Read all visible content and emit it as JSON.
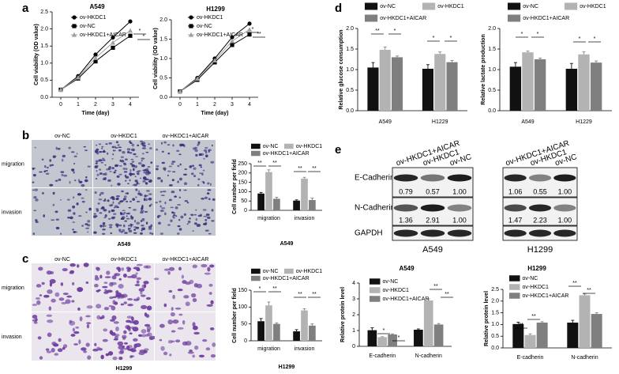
{
  "panel_labels": [
    "a",
    "b",
    "c",
    "d",
    "e"
  ],
  "chart_data": [
    {
      "type": "line",
      "title": "A549",
      "x_label": "Time (day)",
      "y_label": "Cell viability (OD value)",
      "x": [
        0,
        1,
        2,
        3,
        4
      ],
      "xlim": [
        -0.5,
        4.5
      ],
      "xticks": [
        0,
        1,
        2,
        3,
        4
      ],
      "ylim": [
        0,
        2.5
      ],
      "yticks": [
        {
          "value": 0,
          "label": "0.0"
        },
        0.5,
        {
          "value": 1,
          "label": "1.0"
        },
        1.5,
        {
          "value": 2,
          "label": "2.0"
        },
        2.5
      ],
      "series": [
        {
          "name": "ov-HKDC1",
          "color": "#000000",
          "marker": "circle",
          "values": [
            0.22,
            0.62,
            1.25,
            1.75,
            2.22
          ]
        },
        {
          "name": "ov-NC",
          "color": "#000000",
          "marker": "square",
          "values": [
            0.22,
            0.55,
            1.05,
            1.45,
            1.8
          ]
        },
        {
          "name": "ov-HKDC1+AICAR",
          "color": "#a0a0a0",
          "marker": "triangle",
          "values": [
            0.22,
            0.58,
            1.15,
            1.6,
            1.95
          ]
        }
      ],
      "annotations": [
        "*",
        "*"
      ]
    },
    {
      "type": "line",
      "title": "H1299",
      "x_label": "Time (day)",
      "y_label": "Cell viability (OD value)",
      "x": [
        0,
        1,
        2,
        3,
        4
      ],
      "xlim": [
        -0.5,
        4.5
      ],
      "xticks": [
        0,
        1,
        2,
        3,
        4
      ],
      "ylim": [
        0,
        2
      ],
      "yticks": [
        {
          "value": 0,
          "label": "0.0"
        },
        0.5,
        {
          "value": 1,
          "label": "1.0"
        },
        1.5,
        {
          "value": 2,
          "label": "2.0"
        }
      ],
      "series": [
        {
          "name": "ov-HKDC1",
          "color": "#000000",
          "marker": "circle",
          "values": [
            0.15,
            0.5,
            1.0,
            1.55,
            1.9
          ]
        },
        {
          "name": "ov-NC",
          "color": "#000000",
          "marker": "square",
          "values": [
            0.15,
            0.45,
            0.9,
            1.35,
            1.62
          ]
        },
        {
          "name": "ov-HKDC1+AICAR",
          "color": "#a0a0a0",
          "marker": "triangle",
          "values": [
            0.15,
            0.48,
            0.95,
            1.45,
            1.75
          ]
        }
      ],
      "annotations": [
        "*",
        "**"
      ]
    },
    {
      "type": "bar",
      "y_label": "Relative glucose consumption",
      "categories": [
        "A549",
        "H1229"
      ],
      "ylim": [
        0,
        2
      ],
      "yticks": [
        {
          "value": 0,
          "label": "0.0"
        },
        0.5,
        {
          "value": 1,
          "label": "1.0"
        },
        1.5,
        {
          "value": 2,
          "label": "2.0"
        }
      ],
      "series": [
        {
          "name": "ov-NC",
          "color": "#111111",
          "values": [
            1.05,
            1.02
          ],
          "errors": [
            0.12,
            0.1
          ]
        },
        {
          "name": "ov-HKDC1",
          "color": "#b3b3b3",
          "values": [
            1.48,
            1.38
          ],
          "errors": [
            0.07,
            0.05
          ]
        },
        {
          "name": "ov-HKDC1+AICAR",
          "color": "#7f7f7f",
          "values": [
            1.3,
            1.18
          ],
          "errors": [
            0.03,
            0.04
          ]
        }
      ],
      "annotations": [
        "**",
        "*",
        "*",
        "*"
      ]
    },
    {
      "type": "bar",
      "y_label": "Relative lactate production",
      "categories": [
        "A549",
        "H1229"
      ],
      "ylim": [
        0,
        2
      ],
      "yticks": [
        {
          "value": 0,
          "label": "0.0"
        },
        0.5,
        {
          "value": 1,
          "label": "1.0"
        },
        1.5,
        {
          "value": 2,
          "label": "2.0"
        }
      ],
      "series": [
        {
          "name": "ov-NC",
          "color": "#111111",
          "values": [
            1.07,
            1.02
          ],
          "errors": [
            0.1,
            0.13
          ]
        },
        {
          "name": "ov-HKDC1",
          "color": "#b3b3b3",
          "values": [
            1.42,
            1.37
          ],
          "errors": [
            0.03,
            0.06
          ]
        },
        {
          "name": "ov-HKDC1+AICAR",
          "color": "#7f7f7f",
          "values": [
            1.25,
            1.17
          ],
          "errors": [
            0.03,
            0.04
          ]
        }
      ],
      "annotations": [
        "*",
        "*",
        "*",
        "*"
      ]
    },
    {
      "type": "bar",
      "y_label": "Cell number per field",
      "x_label": "A549",
      "categories": [
        "migration",
        "invasion"
      ],
      "ylim": [
        0,
        250
      ],
      "yticks": [
        0,
        50,
        100,
        150,
        200,
        250
      ],
      "series": [
        {
          "name": "ov-NC",
          "color": "#111111",
          "values": [
            90,
            52
          ],
          "errors": [
            6,
            4
          ]
        },
        {
          "name": "ov-HKDC1",
          "color": "#b3b3b3",
          "values": [
            205,
            170
          ],
          "errors": [
            12,
            7
          ]
        },
        {
          "name": "ov-HKDC1+AICAR",
          "color": "#7f7f7f",
          "values": [
            62,
            55
          ],
          "errors": [
            8,
            10
          ]
        }
      ],
      "annotations": [
        "**",
        "**",
        "**",
        "**"
      ]
    },
    {
      "type": "bar",
      "y_label": "Cell number per field",
      "x_label": "H1299",
      "categories": [
        "migration",
        "invasion"
      ],
      "ylim": [
        0,
        150
      ],
      "yticks": [
        0,
        50,
        100,
        150
      ],
      "series": [
        {
          "name": "ov-NC",
          "color": "#111111",
          "values": [
            58,
            28
          ],
          "errors": [
            8,
            5
          ]
        },
        {
          "name": "ov-HKDC1",
          "color": "#b3b3b3",
          "values": [
            105,
            90
          ],
          "errors": [
            10,
            5
          ]
        },
        {
          "name": "ov-HKDC1+AICAR",
          "color": "#7f7f7f",
          "values": [
            50,
            45
          ],
          "errors": [
            3,
            5
          ]
        }
      ],
      "annotations": [
        "*",
        "**",
        "**",
        "**"
      ]
    },
    {
      "type": "bar",
      "title": "A549",
      "y_label": "Relative protein level",
      "categories": [
        "E-cadherin",
        "N-cadherin"
      ],
      "ylim": [
        0,
        4
      ],
      "yticks": [
        0,
        1,
        2,
        3,
        4
      ],
      "series": [
        {
          "name": "ov-NC",
          "color": "#111111",
          "values": [
            1.02,
            1.05
          ],
          "errors": [
            0.15,
            0.05
          ]
        },
        {
          "name": "ov-HKDC1",
          "color": "#b3b3b3",
          "values": [
            0.58,
            2.9
          ],
          "errors": [
            0.03,
            0.1
          ]
        },
        {
          "name": "ov-HKDC1+AICAR",
          "color": "#7f7f7f",
          "values": [
            0.75,
            1.38
          ],
          "errors": [
            0.04,
            0.06
          ]
        }
      ],
      "annotations": [
        "*",
        "*",
        "**",
        "**"
      ]
    },
    {
      "type": "bar",
      "title": "H1299",
      "y_label": "Relative protein level",
      "categories": [
        "E-cadherin",
        "N-cadherin"
      ],
      "ylim": [
        0,
        2.5
      ],
      "yticks": [
        {
          "value": 0,
          "label": "0.0"
        },
        0.5,
        {
          "value": 1,
          "label": "1.0"
        },
        1.5,
        {
          "value": 2,
          "label": "2.0"
        },
        2.5
      ],
      "series": [
        {
          "name": "ov-NC",
          "color": "#111111",
          "values": [
            1.02,
            1.08
          ],
          "errors": [
            0.08,
            0.1
          ]
        },
        {
          "name": "ov-HKDC1",
          "color": "#b3b3b3",
          "values": [
            0.55,
            2.25
          ],
          "errors": [
            0.05,
            0.05
          ]
        },
        {
          "name": "ov-HKDC1+AICAR",
          "color": "#7f7f7f",
          "values": [
            1.08,
            1.45
          ],
          "errors": [
            0.04,
            0.05
          ]
        }
      ],
      "annotations": [
        "**",
        "**",
        "**",
        "**"
      ]
    }
  ],
  "images": [
    {
      "columns": [
        "ov-NC",
        "ov-HKDC1",
        "ov-HKDC1+AICAR"
      ],
      "rows": [
        "migration",
        "invasion"
      ],
      "caption": "A549"
    },
    {
      "columns": [
        "ov-NC",
        "ov-HKDC1",
        "ov-HKDC1+AICAR"
      ],
      "rows": [
        "migration",
        "invasion"
      ],
      "caption": "H1299"
    }
  ],
  "blot_rows": [
    "E-Cadherin",
    "N-Cadherin",
    "GAPDH"
  ],
  "blots": [
    {
      "lanes": [
        "ov-HKDC1+AICAR",
        "ov-HKDC1",
        "ov-NC"
      ],
      "caption": "A549",
      "quantification": [
        [
          "0.79",
          "0.57",
          "1.00"
        ],
        [
          "1.36",
          "2.91",
          "1.00"
        ]
      ]
    },
    {
      "lanes": [
        "ov-HKDC1+AICAR",
        "ov-HKDC1",
        "ov-NC"
      ],
      "caption": "H1299",
      "quantification": [
        [
          "1.06",
          "0.55",
          "1.00"
        ],
        [
          "1.47",
          "2.23",
          "1.00"
        ]
      ]
    }
  ]
}
